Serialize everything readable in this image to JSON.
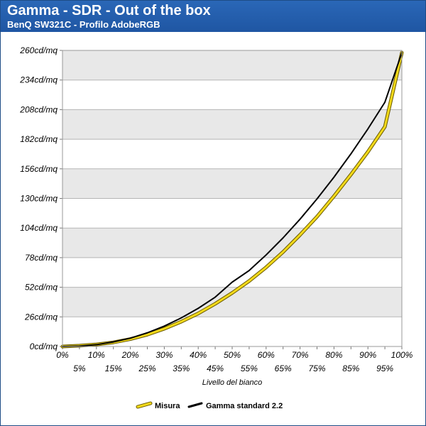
{
  "header": {
    "title": "Gamma - SDR - Out of the box",
    "subtitle": "BenQ SW321C - Profilo AdobeRGB"
  },
  "colors": {
    "header_bg": "#2367b4",
    "band_gray": "#e8e8e8",
    "misura": "#f2d91a",
    "gamma_standard": "#000000"
  },
  "chart_data": {
    "type": "line",
    "xlabel": "Livello del bianco",
    "ylabel": "",
    "x": [
      0,
      5,
      10,
      15,
      20,
      25,
      30,
      35,
      40,
      45,
      50,
      55,
      60,
      65,
      70,
      75,
      80,
      85,
      90,
      95,
      100
    ],
    "x_tick_labels": [
      "0%",
      "5%",
      "10%",
      "15%",
      "20%",
      "25%",
      "30%",
      "35%",
      "40%",
      "45%",
      "50%",
      "55%",
      "60%",
      "65%",
      "70%",
      "75%",
      "80%",
      "85%",
      "90%",
      "95%",
      "100%"
    ],
    "xlim": [
      0,
      100
    ],
    "ylim": [
      0,
      260
    ],
    "y_ticks": [
      0,
      26,
      52,
      78,
      104,
      130,
      156,
      182,
      208,
      234,
      260
    ],
    "y_tick_labels": [
      "0cd/mq",
      "26cd/mq",
      "52cd/mq",
      "78cd/mq",
      "104cd/mq",
      "130cd/mq",
      "156cd/mq",
      "182cd/mq",
      "208cd/mq",
      "234cd/mq",
      "260cd/mq"
    ],
    "grid": "horizontal alternating bands",
    "legend_position": "bottom-center",
    "series": [
      {
        "name": "Misura",
        "color": "#f2d91a",
        "values": [
          0,
          0.7,
          1.8,
          3.6,
          6.5,
          10.4,
          15.6,
          21.8,
          29,
          37.5,
          47,
          57.5,
          69.5,
          83,
          98,
          114,
          132,
          151,
          171,
          193,
          258
        ]
      },
      {
        "name": "Gamma standard 2.2",
        "color": "#000000",
        "values": [
          0,
          0.4,
          1.6,
          4,
          7.3,
          12,
          17.9,
          25.1,
          33.5,
          43.3,
          56.5,
          66.7,
          80.4,
          95.4,
          111.8,
          129.6,
          148.7,
          169.2,
          191.1,
          214.5,
          258
        ]
      }
    ]
  }
}
